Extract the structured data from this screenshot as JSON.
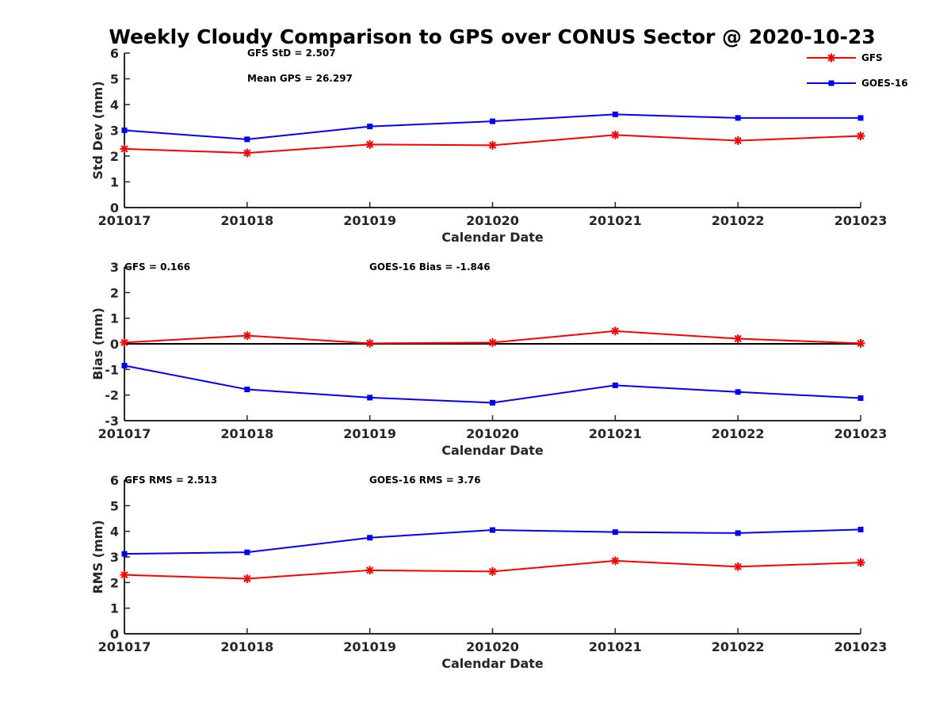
{
  "figure": {
    "title": "Weekly Cloudy Comparison to GPS over CONUS Sector @ 2020-10-23"
  },
  "legend": {
    "placement": "top-right",
    "items": [
      {
        "label": "GFS",
        "color": "#ff0000",
        "marker": "asterisk"
      },
      {
        "label": "GOES-16",
        "color": "#0000ff",
        "marker": "square"
      }
    ]
  },
  "chart_data": [
    {
      "type": "line",
      "xlabel": "Calendar Date",
      "ylabel": "Std Dev (mm)",
      "categories": [
        "201017",
        "201018",
        "201019",
        "201020",
        "201021",
        "201022",
        "201023"
      ],
      "ylim": [
        0,
        6
      ],
      "yticks": [
        0,
        1,
        2,
        3,
        4,
        5,
        6
      ],
      "zero_line": false,
      "annotations": [
        "GFS StD = 2.507",
        "Mean GPS = 26.297"
      ],
      "series": [
        {
          "name": "GFS",
          "color": "#ff0000",
          "marker": "asterisk",
          "values": [
            2.28,
            2.12,
            2.45,
            2.42,
            2.82,
            2.6,
            2.78
          ]
        },
        {
          "name": "GOES-16",
          "color": "#0000ff",
          "marker": "square",
          "values": [
            3.0,
            2.65,
            3.15,
            3.35,
            3.62,
            3.48,
            3.48
          ]
        }
      ]
    },
    {
      "type": "line",
      "xlabel": "Calendar Date",
      "ylabel": "Bias (mm)",
      "categories": [
        "201017",
        "201018",
        "201019",
        "201020",
        "201021",
        "201022",
        "201023"
      ],
      "ylim": [
        -3,
        3
      ],
      "yticks": [
        -3,
        -2,
        -1,
        0,
        1,
        2,
        3
      ],
      "zero_line": true,
      "annotations": [
        "GFS = 0.166",
        "GOES-16 Bias  = -1.846"
      ],
      "series": [
        {
          "name": "GFS",
          "color": "#ff0000",
          "marker": "asterisk",
          "values": [
            0.05,
            0.32,
            0.02,
            0.05,
            0.5,
            0.2,
            0.02
          ]
        },
        {
          "name": "GOES-16",
          "color": "#0000ff",
          "marker": "square",
          "values": [
            -0.85,
            -1.78,
            -2.1,
            -2.3,
            -1.62,
            -1.88,
            -2.12
          ]
        }
      ]
    },
    {
      "type": "line",
      "xlabel": "Calendar Date",
      "ylabel": "RMS (mm)",
      "categories": [
        "201017",
        "201018",
        "201019",
        "201020",
        "201021",
        "201022",
        "201023"
      ],
      "ylim": [
        0,
        6
      ],
      "yticks": [
        0,
        1,
        2,
        3,
        4,
        5,
        6
      ],
      "zero_line": false,
      "annotations": [
        "GFS RMS = 2.513",
        "GOES-16 RMS = 3.76"
      ],
      "series": [
        {
          "name": "GFS",
          "color": "#ff0000",
          "marker": "asterisk",
          "values": [
            2.3,
            2.15,
            2.48,
            2.43,
            2.85,
            2.62,
            2.78
          ]
        },
        {
          "name": "GOES-16",
          "color": "#0000ff",
          "marker": "square",
          "values": [
            3.12,
            3.18,
            3.75,
            4.05,
            3.97,
            3.93,
            4.07
          ]
        }
      ]
    }
  ]
}
